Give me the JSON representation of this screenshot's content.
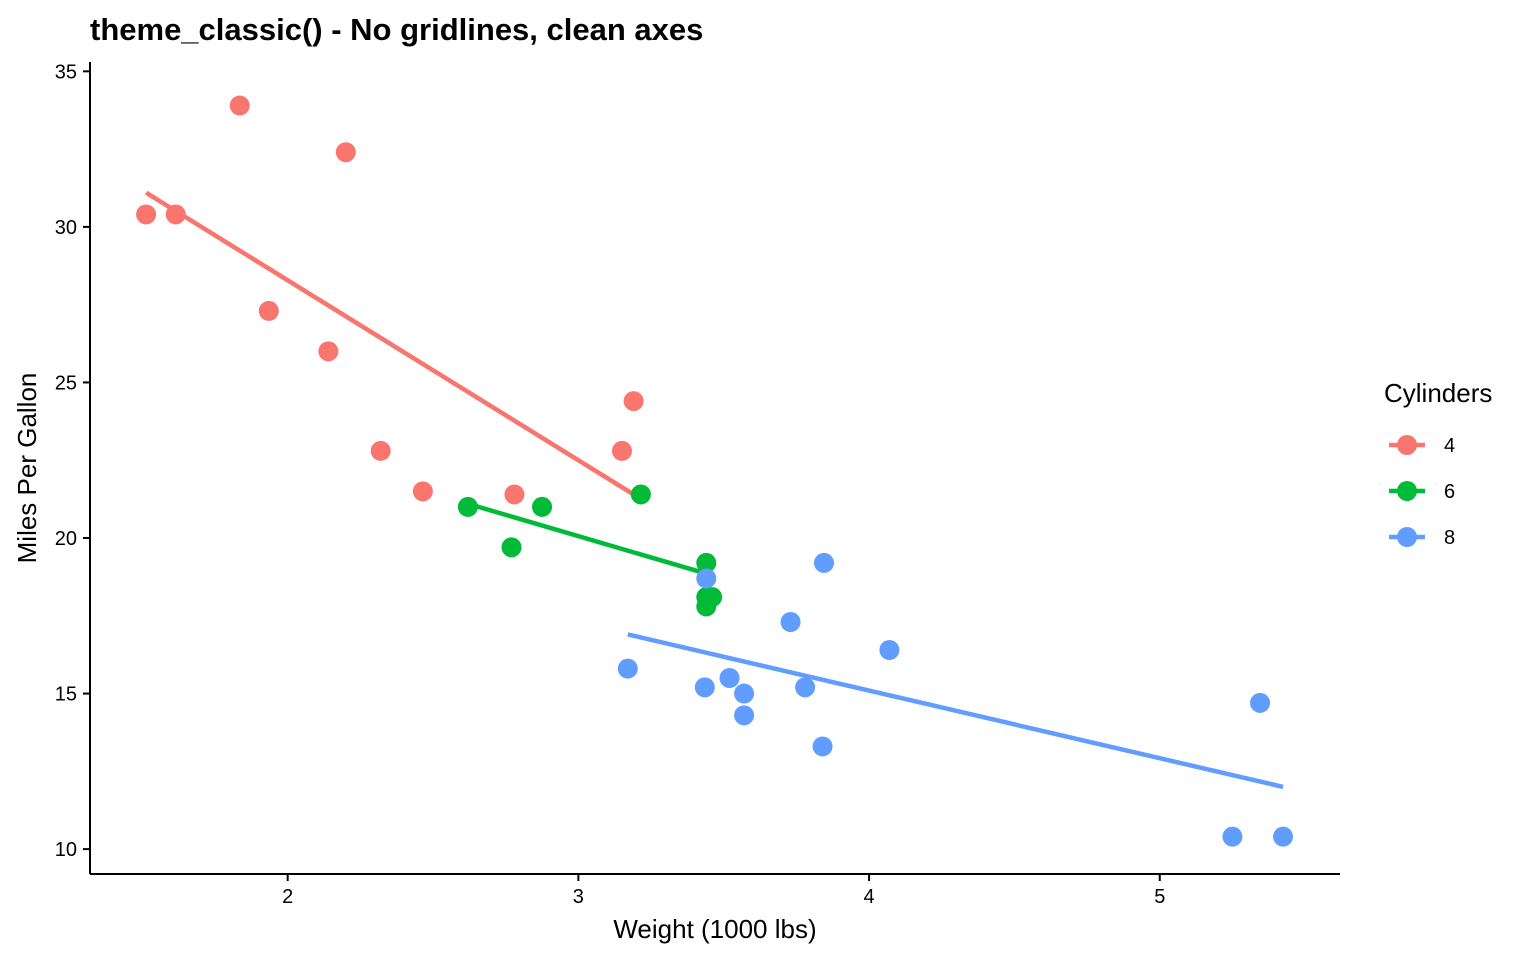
{
  "chart_data": {
    "type": "scatter",
    "title": "theme_classic() - No gridlines, clean axes",
    "xlabel": "Weight (1000 lbs)",
    "ylabel": "Miles Per Gallon",
    "xlim": [
      1.32,
      5.62
    ],
    "ylim": [
      9.2,
      35.3
    ],
    "xticks": [
      2,
      3,
      4,
      5
    ],
    "yticks": [
      10,
      15,
      20,
      25,
      30,
      35
    ],
    "grid": false,
    "legend": {
      "title": "Cylinders",
      "position": "right"
    },
    "series": [
      {
        "name": "4",
        "color": "#F8766D",
        "points": [
          {
            "x": 1.513,
            "y": 30.4
          },
          {
            "x": 1.615,
            "y": 30.4
          },
          {
            "x": 1.835,
            "y": 33.9
          },
          {
            "x": 1.935,
            "y": 27.3
          },
          {
            "x": 2.14,
            "y": 26.0
          },
          {
            "x": 2.2,
            "y": 32.4
          },
          {
            "x": 2.32,
            "y": 22.8
          },
          {
            "x": 2.465,
            "y": 21.5
          },
          {
            "x": 2.78,
            "y": 21.4
          },
          {
            "x": 3.15,
            "y": 22.8
          },
          {
            "x": 3.19,
            "y": 24.4
          }
        ],
        "fit": {
          "x": [
            1.513,
            3.19
          ],
          "y": [
            31.1,
            21.4
          ]
        }
      },
      {
        "name": "6",
        "color": "#00BA38",
        "points": [
          {
            "x": 2.62,
            "y": 21.0
          },
          {
            "x": 2.77,
            "y": 19.7
          },
          {
            "x": 2.875,
            "y": 21.0
          },
          {
            "x": 3.215,
            "y": 21.4
          },
          {
            "x": 3.44,
            "y": 18.1
          },
          {
            "x": 3.44,
            "y": 19.2
          },
          {
            "x": 3.46,
            "y": 18.1
          },
          {
            "x": 3.44,
            "y": 17.8
          }
        ],
        "fit": {
          "x": [
            2.62,
            3.46
          ],
          "y": [
            21.1,
            18.8
          ]
        }
      },
      {
        "name": "8",
        "color": "#619CFF",
        "points": [
          {
            "x": 3.17,
            "y": 15.8
          },
          {
            "x": 3.435,
            "y": 15.2
          },
          {
            "x": 3.44,
            "y": 18.7
          },
          {
            "x": 3.52,
            "y": 15.5
          },
          {
            "x": 3.57,
            "y": 14.3
          },
          {
            "x": 3.57,
            "y": 15.0
          },
          {
            "x": 3.73,
            "y": 17.3
          },
          {
            "x": 3.78,
            "y": 15.2
          },
          {
            "x": 3.84,
            "y": 13.3
          },
          {
            "x": 3.845,
            "y": 19.2
          },
          {
            "x": 4.07,
            "y": 16.4
          },
          {
            "x": 5.25,
            "y": 10.4
          },
          {
            "x": 5.345,
            "y": 14.7
          },
          {
            "x": 5.424,
            "y": 10.4
          }
        ],
        "fit": {
          "x": [
            3.17,
            5.424
          ],
          "y": [
            16.9,
            12.0
          ]
        }
      }
    ]
  }
}
